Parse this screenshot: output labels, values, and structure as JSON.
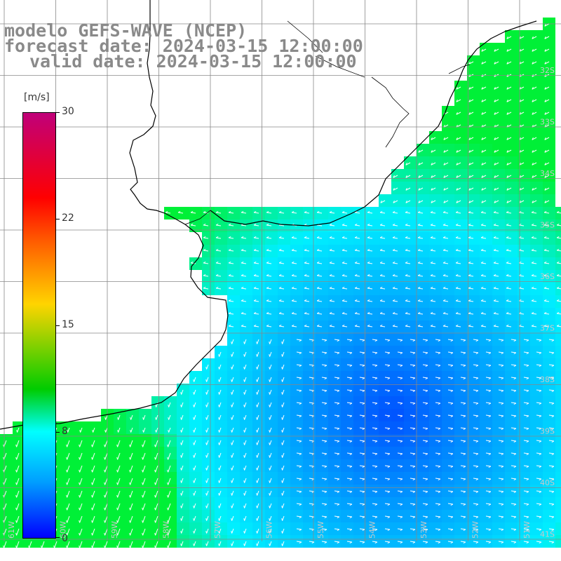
{
  "title": {
    "model": "modelo GEFS-WAVE (NCEP)",
    "forecast": "forecast date: 2024-03-15 12:00:00",
    "valid": "valid date: 2024-03-15 12:00:00"
  },
  "colorbar": {
    "unit": "[m/s]",
    "ticks": [
      "30",
      "22",
      "15",
      "8",
      "0"
    ],
    "colors": [
      "#c0007a",
      "#ff0000",
      "#ff5a00",
      "#ffd400",
      "#00cc00",
      "#00ffff",
      "#009dff",
      "#0000ff"
    ]
  },
  "lat_labels": [
    "32S",
    "33S",
    "34S",
    "35S",
    "36S",
    "37S",
    "38S",
    "39S",
    "40S",
    "41S"
  ],
  "lon_labels": [
    "61W",
    "60W",
    "59W",
    "58W",
    "57W",
    "56W",
    "55W",
    "54W",
    "53W",
    "52W",
    "51W"
  ],
  "colors": {
    "land": "#ffffff",
    "coast": "#000000",
    "grid": "#888888",
    "arrow": "#ffffff"
  }
}
